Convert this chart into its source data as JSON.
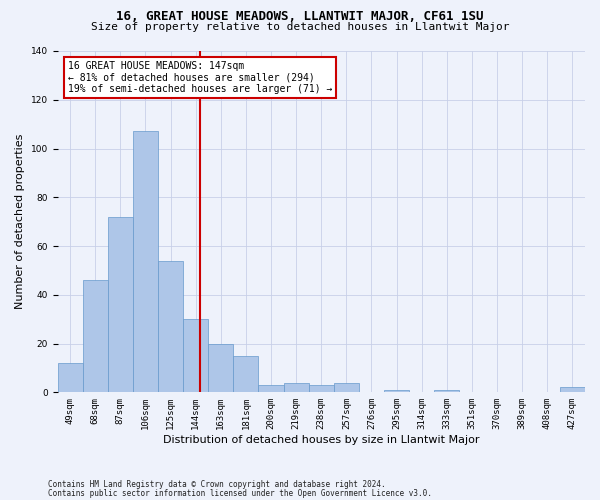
{
  "title": "16, GREAT HOUSE MEADOWS, LLANTWIT MAJOR, CF61 1SU",
  "subtitle": "Size of property relative to detached houses in Llantwit Major",
  "xlabel": "Distribution of detached houses by size in Llantwit Major",
  "ylabel": "Number of detached properties",
  "bar_color": "#aec6e8",
  "bar_edge_color": "#6699cc",
  "categories": [
    "49sqm",
    "68sqm",
    "87sqm",
    "106sqm",
    "125sqm",
    "144sqm",
    "163sqm",
    "181sqm",
    "200sqm",
    "219sqm",
    "238sqm",
    "257sqm",
    "276sqm",
    "295sqm",
    "314sqm",
    "333sqm",
    "351sqm",
    "370sqm",
    "389sqm",
    "408sqm",
    "427sqm"
  ],
  "values": [
    12,
    46,
    72,
    107,
    54,
    30,
    20,
    15,
    3,
    4,
    3,
    4,
    0,
    1,
    0,
    1,
    0,
    0,
    0,
    0,
    2
  ],
  "vline_pos": 5.16,
  "annotation_text": "16 GREAT HOUSE MEADOWS: 147sqm\n← 81% of detached houses are smaller (294)\n19% of semi-detached houses are larger (71) →",
  "annotation_box_color": "#ffffff",
  "annotation_box_edge_color": "#cc0000",
  "vline_color": "#cc0000",
  "footer1": "Contains HM Land Registry data © Crown copyright and database right 2024.",
  "footer2": "Contains public sector information licensed under the Open Government Licence v3.0.",
  "bg_color": "#eef2fb",
  "grid_color": "#c8d0e8",
  "ylim": [
    0,
    140
  ],
  "title_fontsize": 9,
  "subtitle_fontsize": 8,
  "ylabel_fontsize": 8,
  "xlabel_fontsize": 8,
  "tick_fontsize": 6.5,
  "annot_fontsize": 7,
  "footer_fontsize": 5.5
}
